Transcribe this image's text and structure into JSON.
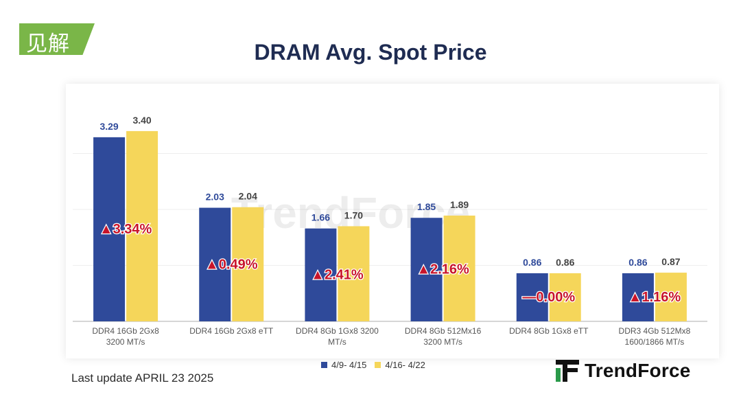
{
  "badge": {
    "text": "见解"
  },
  "colors": {
    "series1": "#2f4a9a",
    "series2": "#f5d65a",
    "badge": "#7ab648",
    "change": "#c8142a",
    "title": "#1f2c52"
  },
  "footer": {
    "update": "Last update APRIL 23  2025",
    "logo_text": "TrendForce",
    "watermark_text": "TrendForce"
  },
  "chart_data": {
    "type": "bar",
    "title": "DRAM Avg. Spot Price",
    "xlabel": "",
    "ylabel": "",
    "ylim": [
      0,
      4
    ],
    "grid": true,
    "legend_position": "bottom",
    "categories": [
      [
        "DDR4 16Gb 2Gx8",
        "3200 MT/s"
      ],
      [
        "DDR4 16Gb 2Gx8 eTT"
      ],
      [
        "DDR4 8Gb 1Gx8 3200",
        "MT/s"
      ],
      [
        "DDR4 8Gb 512Mx16",
        "3200 MT/s"
      ],
      [
        "DDR4 8Gb 1Gx8 eTT"
      ],
      [
        "DDR3 4Gb 512Mx8",
        "1600/1866  MT/s"
      ]
    ],
    "series": [
      {
        "name": "4/9- 4/15",
        "values": [
          3.29,
          2.03,
          1.66,
          1.85,
          0.86,
          0.86
        ],
        "labels": [
          "3.29",
          "2.03",
          "1.66",
          "1.85",
          "0.86",
          "0.86"
        ]
      },
      {
        "name": "4/16- 4/22",
        "values": [
          3.4,
          2.04,
          1.7,
          1.89,
          0.86,
          0.87
        ],
        "labels": [
          "3.40",
          "2.04",
          "1.70",
          "1.89",
          "0.86",
          "0.87"
        ]
      }
    ],
    "changes": [
      "▲3.34%",
      "▲0.49%",
      "▲2.41%",
      "▲2.16%",
      "—0.00%",
      "▲1.16%"
    ]
  }
}
